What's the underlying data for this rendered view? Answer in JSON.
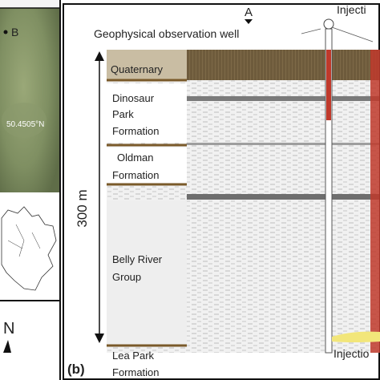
{
  "panel_a": {
    "point_label": "B",
    "latitude": "50.4505°N",
    "north": "N"
  },
  "panel_b": {
    "label": "(b)",
    "point_label": "A",
    "observation_well": "Geophysical observation well",
    "injection_well_top": "Injecti",
    "injection_well_bottom": "Injectio",
    "scale": "300 m",
    "units": [
      {
        "lines": [
          "Quaternary"
        ]
      },
      {
        "lines": [
          "Dinosaur",
          "Park",
          "Formation"
        ]
      },
      {
        "lines": [
          "Oldman",
          "Formation"
        ]
      },
      {
        "lines": [
          "Belly River",
          "Group"
        ]
      },
      {
        "lines": [
          "Lea Park",
          "Formation"
        ]
      }
    ]
  }
}
